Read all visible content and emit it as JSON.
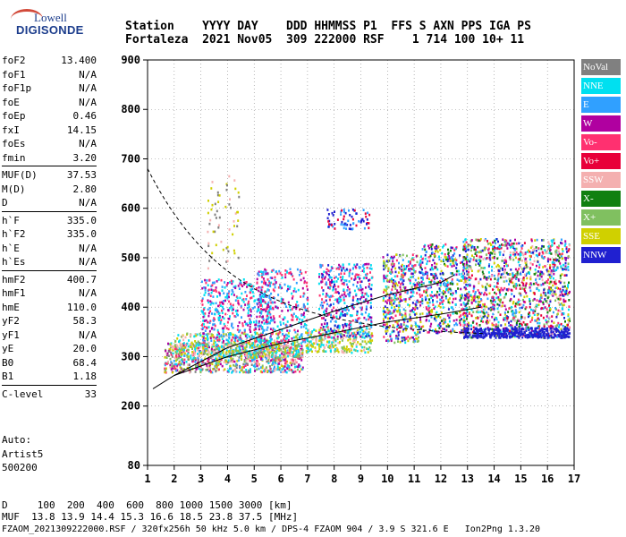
{
  "logo": {
    "top": "Lowell",
    "bottom": "DIGISONDE"
  },
  "header": {
    "line1": "Station    YYYY DAY    DDD HHMMSS P1  FFS S AXN PPS IGA PS",
    "line2": "Fortaleza  2021 Nov05  309 222000 RSF    1 714 100 10+ 11"
  },
  "params": {
    "group1": [
      {
        "name": "foF2",
        "value": "13.400"
      },
      {
        "name": "foF1",
        "value": "N/A"
      },
      {
        "name": "foF1p",
        "value": "N/A"
      },
      {
        "name": "foE",
        "value": "N/A"
      },
      {
        "name": "foEp",
        "value": "0.46"
      },
      {
        "name": "fxI",
        "value": "14.15"
      },
      {
        "name": "foEs",
        "value": "N/A"
      },
      {
        "name": "fmin",
        "value": "3.20"
      }
    ],
    "group2": [
      {
        "name": "MUF(D)",
        "value": "37.53"
      },
      {
        "name": "M(D)",
        "value": "2.80"
      },
      {
        "name": "D",
        "value": "N/A"
      }
    ],
    "group3": [
      {
        "name": "h`F",
        "value": "335.0"
      },
      {
        "name": "h`F2",
        "value": "335.0"
      },
      {
        "name": "h`E",
        "value": "N/A"
      },
      {
        "name": "h`Es",
        "value": "N/A"
      }
    ],
    "group4": [
      {
        "name": "hmF2",
        "value": "400.7"
      },
      {
        "name": "hmF1",
        "value": "N/A"
      },
      {
        "name": "hmE",
        "value": "110.0"
      },
      {
        "name": "yF2",
        "value": "58.3"
      },
      {
        "name": "yF1",
        "value": "N/A"
      },
      {
        "name": "yE",
        "value": "20.0"
      },
      {
        "name": "B0",
        "value": "68.4"
      },
      {
        "name": "B1",
        "value": "1.18"
      }
    ],
    "group5": [
      {
        "name": "C-level",
        "value": "33"
      }
    ]
  },
  "auto": {
    "line1": "Auto:",
    "line2": "Artist5",
    "line3": "500200"
  },
  "axes": {
    "y_ticks": [
      "900",
      "800",
      "700",
      "600",
      "500",
      "400",
      "300",
      "200",
      "80"
    ],
    "x_ticks": [
      "1",
      "2",
      "3",
      "4",
      "5",
      "6",
      "7",
      "8",
      "9",
      "10",
      "11",
      "12",
      "13",
      "14",
      "15",
      "16",
      "17"
    ]
  },
  "legend": [
    {
      "label": "NoVal",
      "color": "#808080"
    },
    {
      "label": "NNE",
      "color": "#00e0f0"
    },
    {
      "label": "E",
      "color": "#30a0ff"
    },
    {
      "label": "W",
      "color": "#b000a0"
    },
    {
      "label": "Vo-",
      "color": "#ff3070"
    },
    {
      "label": "Vo+",
      "color": "#e8003a"
    },
    {
      "label": "SSW",
      "color": "#f4b0b0"
    },
    {
      "label": "X-",
      "color": "#108010"
    },
    {
      "label": "X+",
      "color": "#80c060"
    },
    {
      "label": "SSE",
      "color": "#d0d000"
    },
    {
      "label": "NNW",
      "color": "#2020d0"
    }
  ],
  "footer": {
    "line1": "D     100  200  400  600  800 1000 1500 3000 [km]",
    "line2": "MUF  13.8 13.9 14.4 15.3 16.6 18.5 23.8 37.5 [MHz]",
    "line3": "FZAOM_2021309222000.RSF / 320fx256h 50 kHz 5.0 km / DPS-4 FZAOM 904 / 3.9 S 321.6 E   Ion2Png 1.3.20"
  }
}
